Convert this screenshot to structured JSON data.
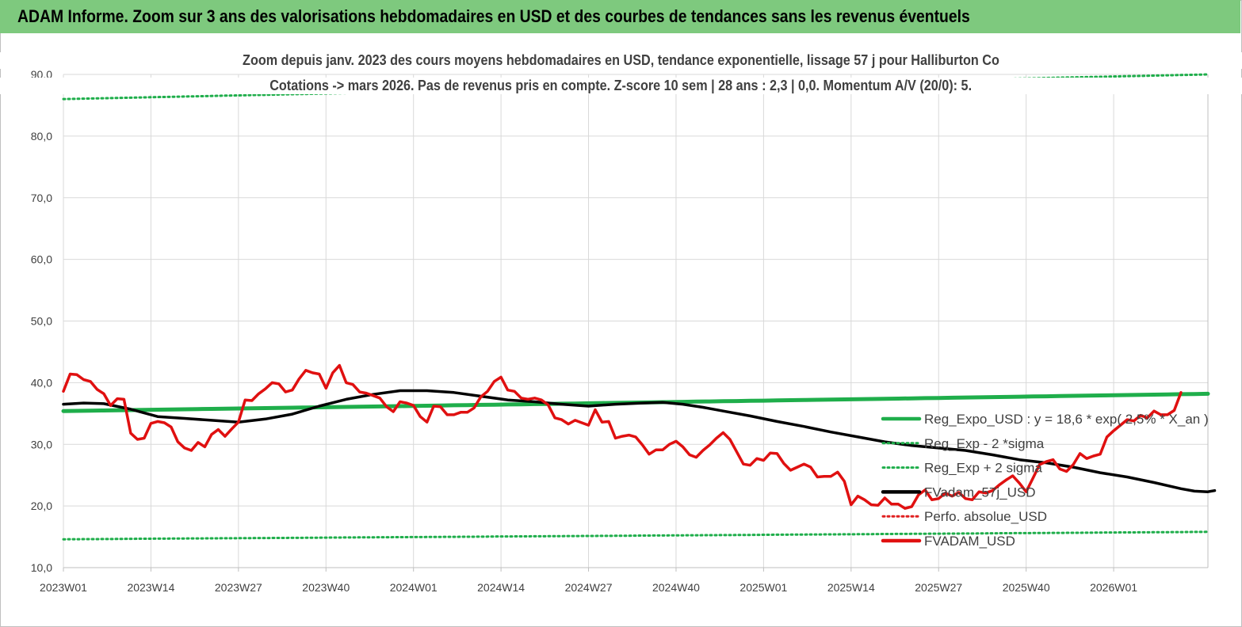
{
  "header": {
    "title": "ADAM Informe. Zoom sur 3 ans des valorisations hebdomadaires en USD et des courbes de tendances sans les revenus éventuels"
  },
  "chart_data": {
    "type": "line",
    "title": "Zoom depuis janv. 2023 des cours moyens hebdomadaires en USD, tendance exponentielle, lissage 57 j pour Halliburton Co",
    "subtitle": "Cotations -> mars 2026. Pas de revenus pris en compte. Z-score 10 sem | 28 ans : 2,3 | 0,0. Momentum A/V (20/0): 5.",
    "ylim": [
      10,
      90
    ],
    "yticks": [
      "10,0",
      "20,0",
      "30,0",
      "40,0",
      "50,0",
      "60,0",
      "70,0",
      "80,0",
      "90,0"
    ],
    "xticks": [
      "2023W01",
      "2023W14",
      "2023W27",
      "2023W40",
      "2024W01",
      "2024W14",
      "2024W27",
      "2024W40",
      "2025W01",
      "2025W14",
      "2025W27",
      "2025W40",
      "2026W01"
    ],
    "grid": true,
    "legend_position": "right",
    "x_weeks": 170,
    "series": [
      {
        "name": "Reg_Expo_USD : y = 18,6 * exp( 2,5% * X_an )",
        "color": "#1fae4b",
        "style": "solid",
        "kind": "trend",
        "start": 35.4,
        "end": 38.2
      },
      {
        "name": "Reg_Exp - 2 *sigma",
        "color": "#1fae4b",
        "style": "dotted",
        "kind": "trend",
        "start": 14.6,
        "end": 15.8
      },
      {
        "name": "Reg_Exp + 2 sigma",
        "color": "#1fae4b",
        "style": "dotted",
        "kind": "trend",
        "start": 86.0,
        "end": 90.0
      },
      {
        "name": "FVadam_57j_USD",
        "color": "#000000",
        "style": "solid",
        "kind": "points",
        "points": [
          [
            0,
            36.5
          ],
          [
            3,
            36.7
          ],
          [
            6,
            36.6
          ],
          [
            10,
            35.7
          ],
          [
            14,
            34.5
          ],
          [
            18,
            34.2
          ],
          [
            22,
            33.9
          ],
          [
            26,
            33.6
          ],
          [
            30,
            34.1
          ],
          [
            34,
            34.9
          ],
          [
            38,
            36.2
          ],
          [
            42,
            37.3
          ],
          [
            46,
            38.1
          ],
          [
            50,
            38.7
          ],
          [
            54,
            38.7
          ],
          [
            58,
            38.4
          ],
          [
            62,
            37.8
          ],
          [
            66,
            37.2
          ],
          [
            70,
            36.9
          ],
          [
            74,
            36.5
          ],
          [
            78,
            36.2
          ],
          [
            82,
            36.5
          ],
          [
            86,
            36.7
          ],
          [
            89,
            36.8
          ],
          [
            92,
            36.5
          ],
          [
            95,
            36.0
          ],
          [
            98,
            35.4
          ],
          [
            102,
            34.6
          ],
          [
            106,
            33.7
          ],
          [
            110,
            32.9
          ],
          [
            114,
            32.0
          ],
          [
            118,
            31.2
          ],
          [
            122,
            30.4
          ],
          [
            126,
            29.8
          ],
          [
            130,
            29.4
          ],
          [
            134,
            29.0
          ],
          [
            138,
            28.3
          ],
          [
            142,
            27.5
          ],
          [
            146,
            27.0
          ],
          [
            150,
            26.3
          ],
          [
            154,
            25.4
          ],
          [
            158,
            24.7
          ],
          [
            162,
            23.8
          ],
          [
            166,
            22.8
          ],
          [
            168,
            22.4
          ],
          [
            170,
            22.3
          ],
          [
            171,
            22.5
          ]
        ]
      },
      {
        "name": "Perfo. absolue_USD",
        "color": "#e02020",
        "style": "dotted",
        "kind": "none"
      },
      {
        "name": "FVADAM_USD",
        "color": "#e01010",
        "style": "solid",
        "kind": "points",
        "points": [
          [
            0,
            38.6
          ],
          [
            1,
            41.4
          ],
          [
            2,
            41.3
          ],
          [
            3,
            40.5
          ],
          [
            4,
            40.2
          ],
          [
            5,
            38.9
          ],
          [
            6,
            38.2
          ],
          [
            7,
            36.3
          ],
          [
            8,
            37.4
          ],
          [
            9,
            37.3
          ],
          [
            10,
            31.8
          ],
          [
            11,
            30.8
          ],
          [
            12,
            31.0
          ],
          [
            13,
            33.4
          ],
          [
            14,
            33.7
          ],
          [
            15,
            33.5
          ],
          [
            16,
            32.8
          ],
          [
            17,
            30.4
          ],
          [
            18,
            29.4
          ],
          [
            19,
            29.0
          ],
          [
            20,
            30.3
          ],
          [
            21,
            29.6
          ],
          [
            22,
            31.6
          ],
          [
            23,
            32.4
          ],
          [
            24,
            31.3
          ],
          [
            25,
            32.5
          ],
          [
            26,
            33.6
          ],
          [
            27,
            37.2
          ],
          [
            28,
            37.1
          ],
          [
            29,
            38.2
          ],
          [
            30,
            39.0
          ],
          [
            31,
            40.0
          ],
          [
            32,
            39.8
          ],
          [
            33,
            38.5
          ],
          [
            34,
            38.8
          ],
          [
            35,
            40.6
          ],
          [
            36,
            42.0
          ],
          [
            37,
            41.6
          ],
          [
            38,
            41.4
          ],
          [
            39,
            39.1
          ],
          [
            40,
            41.6
          ],
          [
            41,
            42.8
          ],
          [
            42,
            40.0
          ],
          [
            43,
            39.7
          ],
          [
            44,
            38.5
          ],
          [
            45,
            38.3
          ],
          [
            46,
            37.9
          ],
          [
            47,
            37.5
          ],
          [
            48,
            36.1
          ],
          [
            49,
            35.3
          ],
          [
            50,
            36.9
          ],
          [
            51,
            36.7
          ],
          [
            52,
            36.3
          ],
          [
            53,
            34.5
          ],
          [
            54,
            33.6
          ],
          [
            55,
            36.2
          ],
          [
            56,
            36.1
          ],
          [
            57,
            34.8
          ],
          [
            58,
            34.8
          ],
          [
            59,
            35.2
          ],
          [
            60,
            35.2
          ],
          [
            61,
            35.9
          ],
          [
            62,
            37.7
          ],
          [
            63,
            38.6
          ],
          [
            64,
            40.2
          ],
          [
            65,
            40.9
          ],
          [
            66,
            38.8
          ],
          [
            67,
            38.6
          ],
          [
            68,
            37.5
          ],
          [
            69,
            37.3
          ],
          [
            70,
            37.5
          ],
          [
            71,
            37.2
          ],
          [
            72,
            36.4
          ],
          [
            73,
            34.3
          ],
          [
            74,
            34.0
          ],
          [
            75,
            33.3
          ],
          [
            76,
            33.9
          ],
          [
            77,
            33.5
          ],
          [
            78,
            33.1
          ],
          [
            79,
            35.6
          ],
          [
            80,
            33.6
          ],
          [
            81,
            33.7
          ],
          [
            82,
            31.0
          ],
          [
            83,
            31.3
          ],
          [
            84,
            31.5
          ],
          [
            85,
            31.2
          ],
          [
            86,
            29.9
          ],
          [
            87,
            28.4
          ],
          [
            88,
            29.1
          ],
          [
            89,
            29.1
          ],
          [
            90,
            30.0
          ],
          [
            91,
            30.5
          ],
          [
            92,
            29.6
          ],
          [
            93,
            28.3
          ],
          [
            94,
            27.9
          ],
          [
            95,
            29.0
          ],
          [
            96,
            29.9
          ],
          [
            97,
            31.0
          ],
          [
            98,
            31.9
          ],
          [
            99,
            30.8
          ],
          [
            100,
            28.8
          ],
          [
            101,
            26.8
          ],
          [
            102,
            26.6
          ],
          [
            103,
            27.7
          ],
          [
            104,
            27.4
          ],
          [
            105,
            28.6
          ],
          [
            106,
            28.5
          ],
          [
            107,
            26.9
          ],
          [
            108,
            25.8
          ],
          [
            109,
            26.3
          ],
          [
            110,
            26.8
          ],
          [
            111,
            26.3
          ],
          [
            112,
            24.7
          ],
          [
            113,
            24.8
          ],
          [
            114,
            24.8
          ],
          [
            115,
            25.5
          ],
          [
            116,
            24.0
          ],
          [
            117,
            20.2
          ],
          [
            118,
            21.6
          ],
          [
            119,
            21.0
          ],
          [
            120,
            20.2
          ],
          [
            121,
            20.1
          ],
          [
            122,
            21.3
          ],
          [
            123,
            20.3
          ],
          [
            124,
            20.3
          ],
          [
            125,
            19.6
          ],
          [
            126,
            19.9
          ],
          [
            127,
            21.8
          ],
          [
            128,
            22.6
          ],
          [
            129,
            21.0
          ],
          [
            130,
            21.2
          ],
          [
            131,
            22.1
          ],
          [
            132,
            21.6
          ],
          [
            133,
            22.2
          ],
          [
            134,
            21.2
          ],
          [
            135,
            21.0
          ],
          [
            136,
            22.3
          ],
          [
            137,
            22.1
          ],
          [
            138,
            22.5
          ],
          [
            139,
            23.4
          ],
          [
            140,
            24.2
          ],
          [
            141,
            24.9
          ],
          [
            142,
            23.7
          ],
          [
            143,
            22.3
          ],
          [
            144,
            24.5
          ],
          [
            145,
            26.7
          ],
          [
            146,
            27.2
          ],
          [
            147,
            27.5
          ],
          [
            148,
            26.0
          ],
          [
            149,
            25.6
          ],
          [
            150,
            26.7
          ],
          [
            151,
            28.5
          ],
          [
            152,
            27.7
          ],
          [
            153,
            28.1
          ],
          [
            154,
            28.4
          ],
          [
            155,
            31.2
          ],
          [
            156,
            32.2
          ],
          [
            157,
            33.1
          ],
          [
            158,
            34.0
          ],
          [
            159,
            33.8
          ],
          [
            160,
            34.7
          ],
          [
            161,
            34.3
          ],
          [
            162,
            35.4
          ],
          [
            163,
            34.8
          ],
          [
            164,
            34.8
          ],
          [
            165,
            35.5
          ],
          [
            166,
            38.4
          ]
        ]
      }
    ]
  }
}
